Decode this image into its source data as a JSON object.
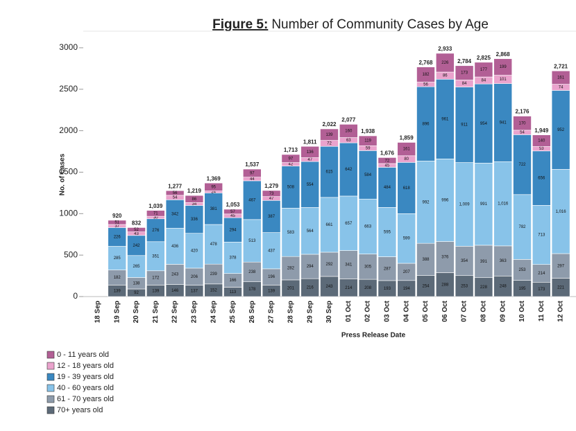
{
  "chart_data": {
    "type": "stacked_bar",
    "title_prefix": "Figure 5:",
    "title": "Number of Community Cases by Age",
    "y_label": "No. of Cases",
    "x_label": "Press Release Date",
    "categories": [
      "18 Sep",
      "19 Sep",
      "20 Sep",
      "21 Sep",
      "22 Sep",
      "23 Sep",
      "24 Sep",
      "25 Sep",
      "26 Sep",
      "27 Sep",
      "28 Sep",
      "29 Sep",
      "30 Sep",
      "01 Oct",
      "02 Oct",
      "03 Oct",
      "04 Oct",
      "05 Oct",
      "06 Oct",
      "07 Oct",
      "08 Oct",
      "09 Oct",
      "10 Oct",
      "11 Oct",
      "12 Oct"
    ],
    "series": [
      {
        "name": "70+ years old",
        "color": "#5c6a78",
        "values": [
          null,
          139,
          92,
          139,
          146,
          137,
          152,
          113,
          178,
          139,
          201,
          216,
          243,
          214,
          208,
          193,
          194,
          254,
          288,
          253,
          228,
          248,
          195,
          173,
          221
        ]
      },
      {
        "name": "61 - 70 years old",
        "color": "#8e9bab",
        "values": [
          null,
          182,
          138,
          172,
          243,
          206,
          239,
          166,
          238,
          196,
          282,
          294,
          292,
          341,
          305,
          287,
          207,
          388,
          376,
          354,
          391,
          363,
          253,
          214,
          297
        ]
      },
      {
        "name": "40 - 60 years old",
        "color": "#88c3e9",
        "values": [
          null,
          285,
          265,
          351,
          436,
          420,
          478,
          378,
          513,
          437,
          583,
          564,
          661,
          657,
          663,
          595,
          599,
          992,
          996,
          1009,
          991,
          1016,
          782,
          713,
          1016
        ],
        "value_labels": [
          null,
          "285",
          "265",
          "351",
          "436",
          "420",
          "478",
          "378",
          "513",
          "437",
          "583",
          "564",
          "661",
          "657",
          "663",
          "595",
          "599",
          "992",
          "996",
          "1,009",
          "991",
          "1,016",
          "782",
          "713",
          "1,016"
        ]
      },
      {
        "name": "19 - 39 years old",
        "color": "#3a88c1",
        "values": [
          null,
          226,
          242,
          276,
          342,
          336,
          381,
          294,
          467,
          387,
          508,
          554,
          615,
          642,
          584,
          484,
          618,
          896,
          961,
          911,
          954,
          941,
          722,
          656,
          952
        ]
      },
      {
        "name": "12 - 18 years old",
        "color": "#eaa3cd",
        "values": [
          null,
          37,
          43,
          30,
          54,
          34,
          24,
          45,
          44,
          47,
          42,
          47,
          72,
          63,
          59,
          45,
          80,
          56,
          86,
          84,
          84,
          101,
          54,
          53,
          74
        ]
      },
      {
        "name": "0 - 11 years old",
        "color": "#b25f95",
        "values": [
          null,
          51,
          52,
          71,
          56,
          86,
          95,
          57,
          97,
          73,
          97,
          136,
          139,
          160,
          119,
          72,
          161,
          182,
          226,
          173,
          177,
          199,
          170,
          140,
          161
        ]
      }
    ],
    "totals": [
      null,
      920,
      832,
      1039,
      1277,
      1219,
      1369,
      1053,
      1537,
      1279,
      1713,
      1811,
      2022,
      2077,
      1938,
      1676,
      1859,
      2768,
      2933,
      2784,
      2825,
      2868,
      2176,
      1949,
      2721
    ],
    "total_labels": [
      null,
      "920",
      "832",
      "1,039",
      "1,277",
      "1,219",
      "1,369",
      "1,053",
      "1,537",
      "1,279",
      "1,713",
      "1,811",
      "2,022",
      "2,077",
      "1,938",
      "1,676",
      "1,859",
      "2,768",
      "2,933",
      "2,784",
      "2,825",
      "2,868",
      "2,176",
      "1,949",
      "2,721"
    ],
    "ylim": [
      0,
      3200
    ],
    "yticks": [
      0,
      500,
      1000,
      1500,
      2000,
      2500,
      3000
    ]
  }
}
